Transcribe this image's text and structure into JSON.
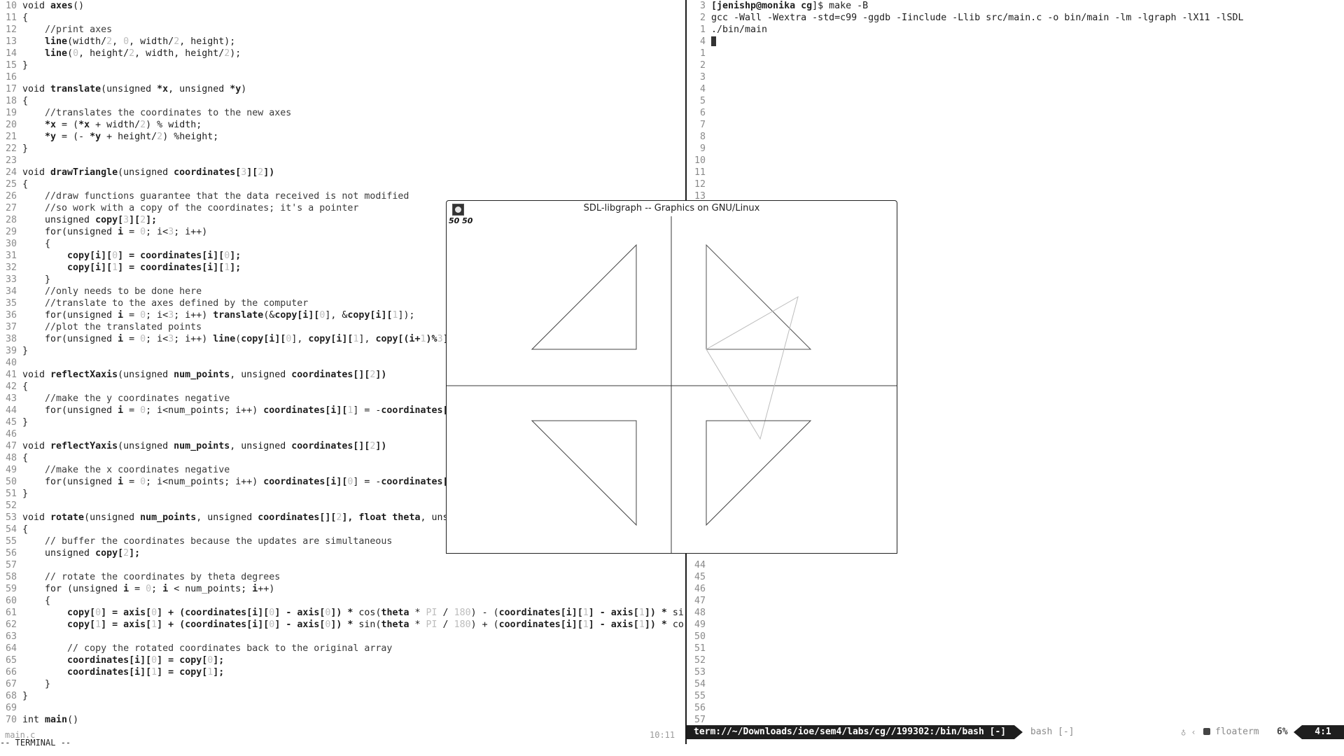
{
  "editor": {
    "start_line": 10,
    "lines": [
      [
        [
          "void ",
          ""
        ],
        [
          "axes",
          "kw"
        ],
        [
          "()",
          ""
        ]
      ],
      [
        [
          "{",
          ""
        ]
      ],
      [
        [
          "    ",
          ""
        ],
        [
          "//print axes",
          "cm"
        ]
      ],
      [
        [
          "    ",
          ""
        ],
        [
          "line",
          "kw"
        ],
        [
          "(width/",
          ""
        ],
        [
          "2",
          "num"
        ],
        [
          ", ",
          ""
        ],
        [
          "0",
          "num"
        ],
        [
          ", width/",
          ""
        ],
        [
          "2",
          "num"
        ],
        [
          ", height);",
          ""
        ]
      ],
      [
        [
          "    ",
          ""
        ],
        [
          "line",
          "kw"
        ],
        [
          "(",
          ""
        ],
        [
          "0",
          "num"
        ],
        [
          ", height/",
          ""
        ],
        [
          "2",
          "num"
        ],
        [
          ", width, height/",
          ""
        ],
        [
          "2",
          "num"
        ],
        [
          ");",
          ""
        ]
      ],
      [
        [
          "}",
          ""
        ]
      ],
      [],
      [
        [
          "void ",
          ""
        ],
        [
          "translate",
          "kw"
        ],
        [
          "(unsigned ",
          ""
        ],
        [
          "*x",
          "kw"
        ],
        [
          ", unsigned ",
          ""
        ],
        [
          "*y",
          "kw"
        ],
        [
          ")",
          ""
        ]
      ],
      [
        [
          "{",
          ""
        ]
      ],
      [
        [
          "    ",
          ""
        ],
        [
          "//translates the coordinates to the new axes",
          "cm"
        ]
      ],
      [
        [
          "    ",
          ""
        ],
        [
          "*x",
          "kw"
        ],
        [
          " = (",
          ""
        ],
        [
          "*x",
          "kw"
        ],
        [
          " + width/",
          ""
        ],
        [
          "2",
          "num"
        ],
        [
          ") % width;",
          ""
        ]
      ],
      [
        [
          "    ",
          ""
        ],
        [
          "*y",
          "kw"
        ],
        [
          " = (- ",
          ""
        ],
        [
          "*y",
          "kw"
        ],
        [
          " + height/",
          ""
        ],
        [
          "2",
          "num"
        ],
        [
          ") %height;",
          ""
        ]
      ],
      [
        [
          "}",
          ""
        ]
      ],
      [],
      [
        [
          "void ",
          ""
        ],
        [
          "drawTriangle",
          "kw"
        ],
        [
          "(unsigned ",
          ""
        ],
        [
          "coordinates[",
          "kw"
        ],
        [
          "3",
          "num"
        ],
        [
          "][",
          "kw"
        ],
        [
          "2",
          "num"
        ],
        [
          "])",
          "kw"
        ]
      ],
      [
        [
          "{",
          ""
        ]
      ],
      [
        [
          "    ",
          ""
        ],
        [
          "//draw functions guarantee that the data received is not modified",
          "cm"
        ]
      ],
      [
        [
          "    ",
          ""
        ],
        [
          "//so work with a copy of the coordinates; it's a pointer",
          "cm"
        ]
      ],
      [
        [
          "    unsigned ",
          ""
        ],
        [
          "copy[",
          "kw"
        ],
        [
          "3",
          "num"
        ],
        [
          "][",
          "kw"
        ],
        [
          "2",
          "num"
        ],
        [
          "];",
          "kw"
        ]
      ],
      [
        [
          "    for(unsigned ",
          ""
        ],
        [
          "i",
          "kw"
        ],
        [
          " = ",
          ""
        ],
        [
          "0",
          "num"
        ],
        [
          "; i<",
          ""
        ],
        [
          "3",
          "num"
        ],
        [
          "; i++)",
          ""
        ]
      ],
      [
        [
          "    {",
          ""
        ]
      ],
      [
        [
          "        ",
          ""
        ],
        [
          "copy[i][",
          "kw"
        ],
        [
          "0",
          "num"
        ],
        [
          "] = ",
          "kw"
        ],
        [
          "coordinates[i][",
          "kw"
        ],
        [
          "0",
          "num"
        ],
        [
          "];",
          "kw"
        ]
      ],
      [
        [
          "        ",
          ""
        ],
        [
          "copy[i][",
          "kw"
        ],
        [
          "1",
          "num"
        ],
        [
          "] = ",
          "kw"
        ],
        [
          "coordinates[i][",
          "kw"
        ],
        [
          "1",
          "num"
        ],
        [
          "];",
          "kw"
        ]
      ],
      [
        [
          "    }",
          ""
        ]
      ],
      [
        [
          "    ",
          ""
        ],
        [
          "//only needs to be done here",
          "cm"
        ]
      ],
      [
        [
          "    ",
          ""
        ],
        [
          "//translate to the axes defined by the computer",
          "cm"
        ]
      ],
      [
        [
          "    for(unsigned ",
          ""
        ],
        [
          "i",
          "kw"
        ],
        [
          " = ",
          ""
        ],
        [
          "0",
          "num"
        ],
        [
          "; i<",
          ""
        ],
        [
          "3",
          "num"
        ],
        [
          "; i++) ",
          ""
        ],
        [
          "translate",
          "kw"
        ],
        [
          "(&",
          ""
        ],
        [
          "copy[i][",
          "kw"
        ],
        [
          "0",
          "num"
        ],
        [
          "], &",
          ""
        ],
        [
          "copy[i][",
          "kw"
        ],
        [
          "1",
          "num"
        ],
        [
          "]);",
          ""
        ]
      ],
      [
        [
          "    ",
          ""
        ],
        [
          "//plot the translated points",
          "cm"
        ]
      ],
      [
        [
          "    for(unsigned ",
          ""
        ],
        [
          "i",
          "kw"
        ],
        [
          " = ",
          ""
        ],
        [
          "0",
          "num"
        ],
        [
          "; i<",
          ""
        ],
        [
          "3",
          "num"
        ],
        [
          "; i++) ",
          ""
        ],
        [
          "line",
          "kw"
        ],
        [
          "(",
          ""
        ],
        [
          "copy[i][",
          "kw"
        ],
        [
          "0",
          "num"
        ],
        [
          "], ",
          ""
        ],
        [
          "copy[i][",
          "kw"
        ],
        [
          "1",
          "num"
        ],
        [
          "], ",
          ""
        ],
        [
          "copy[(i+",
          "kw"
        ],
        [
          "1",
          "num"
        ],
        [
          ")%",
          "kw"
        ],
        [
          "3",
          "num"
        ],
        [
          "]",
          ""
        ]
      ],
      [
        [
          "}",
          ""
        ]
      ],
      [],
      [
        [
          "void ",
          ""
        ],
        [
          "reflectXaxis",
          "kw"
        ],
        [
          "(unsigned ",
          ""
        ],
        [
          "num_points",
          "kw"
        ],
        [
          ", unsigned ",
          ""
        ],
        [
          "coordinates[][",
          "kw"
        ],
        [
          "2",
          "num"
        ],
        [
          "])",
          "kw"
        ]
      ],
      [
        [
          "{",
          ""
        ]
      ],
      [
        [
          "    ",
          ""
        ],
        [
          "//make the y coordinates negative",
          "cm"
        ]
      ],
      [
        [
          "    for(unsigned ",
          ""
        ],
        [
          "i",
          "kw"
        ],
        [
          " = ",
          ""
        ],
        [
          "0",
          "num"
        ],
        [
          "; i<num_points; i++) ",
          ""
        ],
        [
          "coordinates[i][",
          "kw"
        ],
        [
          "1",
          "num"
        ],
        [
          "] = -",
          ""
        ],
        [
          "coordinates[",
          "kw"
        ]
      ],
      [
        [
          "}",
          ""
        ]
      ],
      [],
      [
        [
          "void ",
          ""
        ],
        [
          "reflectYaxis",
          "kw"
        ],
        [
          "(unsigned ",
          ""
        ],
        [
          "num_points",
          "kw"
        ],
        [
          ", unsigned ",
          ""
        ],
        [
          "coordinates[][",
          "kw"
        ],
        [
          "2",
          "num"
        ],
        [
          "])",
          "kw"
        ]
      ],
      [
        [
          "{",
          ""
        ]
      ],
      [
        [
          "    ",
          ""
        ],
        [
          "//make the x coordinates negative",
          "cm"
        ]
      ],
      [
        [
          "    for(unsigned ",
          ""
        ],
        [
          "i",
          "kw"
        ],
        [
          " = ",
          ""
        ],
        [
          "0",
          "num"
        ],
        [
          "; i<num_points; i++) ",
          ""
        ],
        [
          "coordinates[i][",
          "kw"
        ],
        [
          "0",
          "num"
        ],
        [
          "] = -",
          ""
        ],
        [
          "coordinates[",
          "kw"
        ]
      ],
      [
        [
          "}",
          ""
        ]
      ],
      [],
      [
        [
          "void ",
          ""
        ],
        [
          "rotate",
          "kw"
        ],
        [
          "(unsigned ",
          ""
        ],
        [
          "num_points",
          "kw"
        ],
        [
          ", unsigned ",
          ""
        ],
        [
          "coordinates[][",
          "kw"
        ],
        [
          "2",
          "num"
        ],
        [
          "], float ",
          "kw"
        ],
        [
          "theta",
          "kw"
        ],
        [
          ", uns",
          ""
        ]
      ],
      [
        [
          "{",
          ""
        ]
      ],
      [
        [
          "    ",
          ""
        ],
        [
          "// buffer the coordinates because the updates are simultaneous",
          "cm"
        ]
      ],
      [
        [
          "    unsigned ",
          ""
        ],
        [
          "copy[",
          "kw"
        ],
        [
          "2",
          "num"
        ],
        [
          "];",
          "kw"
        ]
      ],
      [],
      [
        [
          "    ",
          ""
        ],
        [
          "// rotate the coordinates by theta degrees",
          "cm"
        ]
      ],
      [
        [
          "    for (unsigned ",
          ""
        ],
        [
          "i",
          "kw"
        ],
        [
          " = ",
          ""
        ],
        [
          "0",
          "num"
        ],
        [
          "; ",
          ""
        ],
        [
          "i",
          "kw"
        ],
        [
          " < num_points; ",
          ""
        ],
        [
          "i",
          "kw"
        ],
        [
          "++)",
          ""
        ]
      ],
      [
        [
          "    {",
          ""
        ]
      ],
      [
        [
          "        ",
          ""
        ],
        [
          "copy[",
          "kw"
        ],
        [
          "0",
          "num"
        ],
        [
          "] = ",
          "kw"
        ],
        [
          "axis[",
          "kw"
        ],
        [
          "0",
          "num"
        ],
        [
          "] + (",
          "kw"
        ],
        [
          "coordinates[i][",
          "kw"
        ],
        [
          "0",
          "num"
        ],
        [
          "] - ",
          "kw"
        ],
        [
          "axis[",
          "kw"
        ],
        [
          "0",
          "num"
        ],
        [
          "]) * ",
          "kw"
        ],
        [
          "cos",
          ""
        ],
        [
          "(",
          ""
        ],
        [
          "theta",
          "kw"
        ],
        [
          " * ",
          ""
        ],
        [
          "PI",
          "num"
        ],
        [
          " / ",
          ""
        ],
        [
          "180",
          "num"
        ],
        [
          ") - (",
          ""
        ],
        [
          "coordinates[i][",
          "kw"
        ],
        [
          "1",
          "num"
        ],
        [
          "] - ",
          "kw"
        ],
        [
          "axis[",
          "kw"
        ],
        [
          "1",
          "num"
        ],
        [
          "]) * ",
          "kw"
        ],
        [
          "si",
          ""
        ]
      ],
      [
        [
          "        ",
          ""
        ],
        [
          "copy[",
          "kw"
        ],
        [
          "1",
          "num"
        ],
        [
          "] = ",
          "kw"
        ],
        [
          "axis[",
          "kw"
        ],
        [
          "1",
          "num"
        ],
        [
          "] + (",
          "kw"
        ],
        [
          "coordinates[i][",
          "kw"
        ],
        [
          "0",
          "num"
        ],
        [
          "] - ",
          "kw"
        ],
        [
          "axis[",
          "kw"
        ],
        [
          "0",
          "num"
        ],
        [
          "]) * ",
          "kw"
        ],
        [
          "sin",
          ""
        ],
        [
          "(",
          ""
        ],
        [
          "theta",
          "kw"
        ],
        [
          " * ",
          ""
        ],
        [
          "PI",
          "num"
        ],
        [
          " / ",
          ""
        ],
        [
          "180",
          "num"
        ],
        [
          ") + (",
          ""
        ],
        [
          "coordinates[i][",
          "kw"
        ],
        [
          "1",
          "num"
        ],
        [
          "] - ",
          "kw"
        ],
        [
          "axis[",
          "kw"
        ],
        [
          "1",
          "num"
        ],
        [
          "]) * ",
          "kw"
        ],
        [
          "co",
          ""
        ]
      ],
      [],
      [
        [
          "        ",
          ""
        ],
        [
          "// copy the rotated coordinates back to the original array",
          "cm"
        ]
      ],
      [
        [
          "        ",
          ""
        ],
        [
          "coordinates[i][",
          "kw"
        ],
        [
          "0",
          "num"
        ],
        [
          "] = ",
          "kw"
        ],
        [
          "copy[",
          "kw"
        ],
        [
          "0",
          "num"
        ],
        [
          "];",
          "kw"
        ]
      ],
      [
        [
          "        ",
          ""
        ],
        [
          "coordinates[i][",
          "kw"
        ],
        [
          "1",
          "num"
        ],
        [
          "] = ",
          "kw"
        ],
        [
          "copy[",
          "kw"
        ],
        [
          "1",
          "num"
        ],
        [
          "];",
          "kw"
        ]
      ],
      [
        [
          "    }",
          ""
        ]
      ],
      [
        [
          "}",
          ""
        ]
      ],
      [],
      [
        [
          "int ",
          ""
        ],
        [
          "main",
          "kw"
        ],
        [
          "()",
          ""
        ]
      ]
    ],
    "filename": "main.c",
    "cursor_pos": "10:11",
    "mode": "-- TERMINAL --"
  },
  "terminal": {
    "prompt_user": "[jenishp@monika ",
    "prompt_dir": "cg",
    "prompt_end": "]$ make -B",
    "lines": [
      {
        "ln": "3",
        "text": "__PROMPT__"
      },
      {
        "ln": "2",
        "text": "gcc -Wall -Wextra -std=c99 -ggdb -Iinclude -Llib src/main.c -o bin/main -lm -lgraph -lX11 -lSDL"
      },
      {
        "ln": "1",
        "text": "./bin/main"
      },
      {
        "ln": "4",
        "text": "__CURSOR__"
      },
      {
        "ln": "1",
        "text": ""
      },
      {
        "ln": "2",
        "text": ""
      },
      {
        "ln": "3",
        "text": ""
      },
      {
        "ln": "4",
        "text": ""
      },
      {
        "ln": "5",
        "text": ""
      },
      {
        "ln": "6",
        "text": ""
      },
      {
        "ln": "7",
        "text": ""
      },
      {
        "ln": "8",
        "text": ""
      },
      {
        "ln": "9",
        "text": ""
      },
      {
        "ln": "10",
        "text": ""
      },
      {
        "ln": "11",
        "text": ""
      },
      {
        "ln": "12",
        "text": ""
      },
      {
        "ln": "13",
        "text": ""
      }
    ],
    "lower_lines": [
      "44",
      "45",
      "46",
      "47",
      "48",
      "49",
      "50",
      "51",
      "52",
      "53",
      "54",
      "55",
      "56",
      "57"
    ],
    "status_path": "term://~/Downloads/ioe/sem4/labs/cg//199302:/bin/bash [-]",
    "status_tab2": "bash [-]",
    "floaterm_label": "floaterm",
    "percent": "6%",
    "position": "4:1"
  },
  "sdl_window": {
    "title": "SDL-libgraph -- Graphics on GNU/Linux",
    "coords_text": "50 50"
  },
  "colors": {
    "status_bg": "#1e1e1e",
    "status_fg": "#ffffff",
    "line_number": "#8a8a8a"
  }
}
